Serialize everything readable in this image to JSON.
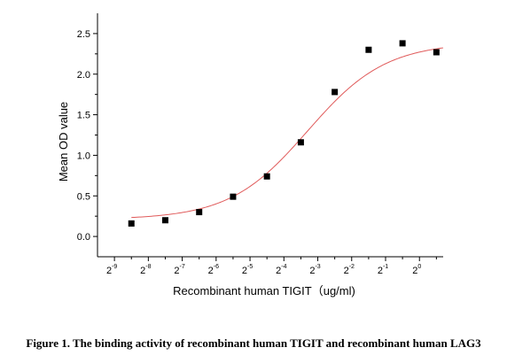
{
  "chart_data": {
    "type": "scatter",
    "title": "",
    "xlabel": "Recombinant human  TIGIT（ug/ml)",
    "ylabel": "Mean OD value",
    "x_scale": "log2",
    "xlim": [
      -9.5,
      0.7
    ],
    "ylim": [
      -0.25,
      2.75
    ],
    "x_ticks": [
      -9,
      -8,
      -7,
      -6,
      -5,
      -4,
      -3,
      -2,
      -1,
      0
    ],
    "x_tick_labels": [
      {
        "base": "2",
        "exp": "-9"
      },
      {
        "base": "2",
        "exp": "-8"
      },
      {
        "base": "2",
        "exp": "-7"
      },
      {
        "base": "2",
        "exp": "-6"
      },
      {
        "base": "2",
        "exp": "-5"
      },
      {
        "base": "2",
        "exp": "-4"
      },
      {
        "base": "2",
        "exp": "-3"
      },
      {
        "base": "2",
        "exp": "-2"
      },
      {
        "base": "2",
        "exp": "-1"
      },
      {
        "base": "2",
        "exp": "0"
      }
    ],
    "y_ticks": [
      0.0,
      0.5,
      1.0,
      1.5,
      2.0,
      2.5
    ],
    "y_tick_labels": [
      "0.0",
      "0.5",
      "1.0",
      "1.5",
      "2.0",
      "2.5"
    ],
    "grid": false,
    "series": [
      {
        "kind": "points",
        "marker": "square",
        "color": "#000000",
        "x": [
          -8.5,
          -7.5,
          -6.5,
          -5.5,
          -4.5,
          -3.5,
          -2.5,
          -1.5,
          -0.5,
          0.5
        ],
        "y": [
          0.16,
          0.2,
          0.3,
          0.49,
          0.74,
          1.16,
          1.78,
          2.3,
          2.38,
          2.27
        ]
      },
      {
        "kind": "fit",
        "color": "#e05a5a",
        "model": "4PL",
        "bottom": 0.21,
        "top": 2.39,
        "x50_log2": -3.3,
        "slope": 1.25,
        "x_range": [
          -8.5,
          0.7
        ]
      }
    ]
  },
  "caption": "Figure 1. The binding activity of recombinant human TIGIT and recombinant human LAG3"
}
